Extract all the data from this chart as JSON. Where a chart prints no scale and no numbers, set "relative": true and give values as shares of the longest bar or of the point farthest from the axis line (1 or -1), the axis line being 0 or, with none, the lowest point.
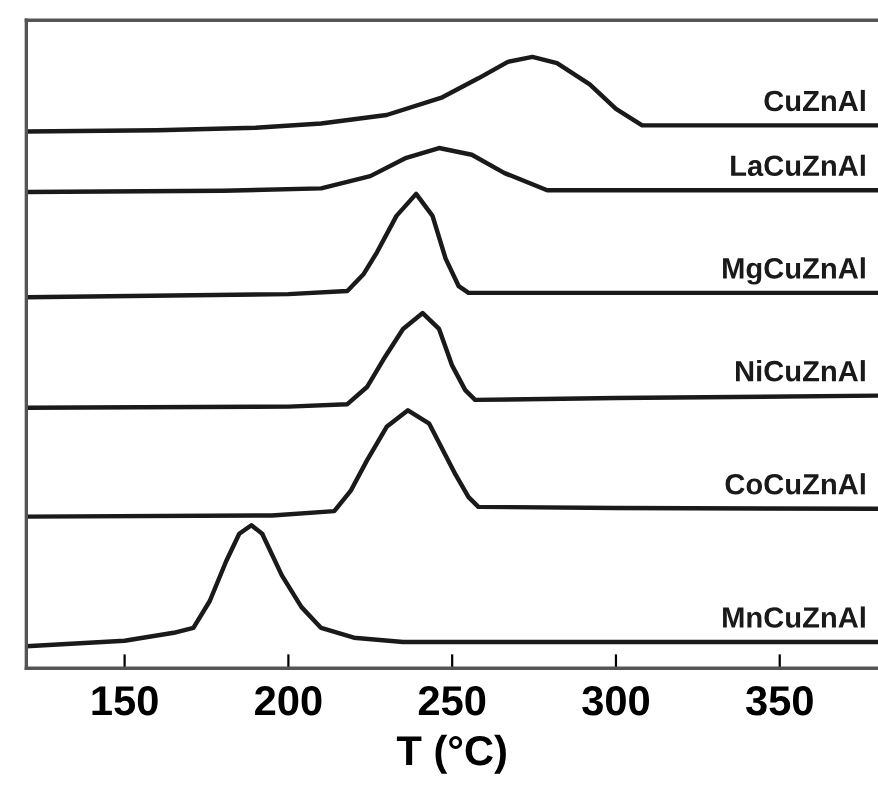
{
  "chart_data": {
    "type": "line",
    "relative": true,
    "xlabel": "T (°C)",
    "xlim": [
      120,
      380
    ],
    "xticks": [
      150,
      200,
      250,
      300,
      350
    ],
    "legend": false,
    "grid": false,
    "marker": "none",
    "line_style": "solid",
    "series": [
      {
        "name": "CuZnAl",
        "color": "#1a1a1a",
        "x": [
          120,
          160,
          190,
          210,
          230,
          247,
          258,
          267,
          274.5,
          282,
          292,
          300,
          308,
          330,
          380
        ],
        "values": [
          0.878,
          0.88,
          0.884,
          0.891,
          0.905,
          0.934,
          0.965,
          0.992,
          1.0,
          0.99,
          0.955,
          0.915,
          0.888,
          0.888,
          0.888
        ]
      },
      {
        "name": "LaCuZnAl",
        "color": "#1a1a1a",
        "x": [
          120,
          180,
          210,
          225,
          236,
          246,
          256,
          266,
          279,
          300,
          380
        ],
        "values": [
          0.779,
          0.781,
          0.785,
          0.805,
          0.835,
          0.851,
          0.84,
          0.81,
          0.782,
          0.782,
          0.782
        ]
      },
      {
        "name": "MgCuZnAl",
        "color": "#1a1a1a",
        "x": [
          120,
          200,
          218,
          223,
          227,
          233,
          239,
          244,
          248,
          252,
          255,
          300,
          380
        ],
        "values": [
          0.607,
          0.612,
          0.617,
          0.645,
          0.68,
          0.74,
          0.776,
          0.74,
          0.67,
          0.625,
          0.614,
          0.614,
          0.614
        ]
      },
      {
        "name": "NiCuZnAl",
        "color": "#1a1a1a",
        "x": [
          120,
          200,
          218,
          224,
          229,
          235,
          241,
          246,
          250,
          254,
          257,
          300,
          380
        ],
        "values": [
          0.426,
          0.428,
          0.432,
          0.46,
          0.505,
          0.555,
          0.581,
          0.555,
          0.495,
          0.455,
          0.439,
          0.442,
          0.446
        ]
      },
      {
        "name": "CoCuZnAl",
        "color": "#1a1a1a",
        "x": [
          120,
          195,
          214,
          219,
          224,
          230,
          236.5,
          243,
          251,
          255,
          258,
          300,
          380
        ],
        "values": [
          0.248,
          0.25,
          0.257,
          0.29,
          0.34,
          0.395,
          0.422,
          0.4,
          0.317,
          0.28,
          0.264,
          0.262,
          0.261
        ]
      },
      {
        "name": "MnCuZnAl",
        "color": "#1a1a1a",
        "x": [
          120,
          150,
          165,
          171,
          176,
          181,
          185,
          188.7,
          192,
          198,
          204,
          210,
          220,
          235,
          380
        ],
        "values": [
          0.036,
          0.045,
          0.058,
          0.066,
          0.11,
          0.175,
          0.22,
          0.234,
          0.22,
          0.152,
          0.1,
          0.066,
          0.05,
          0.043,
          0.043
        ]
      }
    ]
  }
}
